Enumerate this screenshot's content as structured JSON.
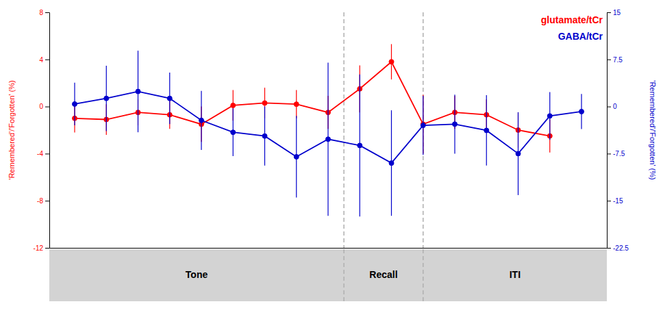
{
  "chart_data": {
    "type": "line",
    "ylabel": "'Remembered'/'Forgotten'  (%)",
    "y2label": "'Remembered'/'Forgotten'  (%)",
    "xlim": [
      0.2,
      17.8
    ],
    "ylim": [
      -12,
      8
    ],
    "yticks": [
      -12,
      -8,
      -4,
      0,
      4,
      8
    ],
    "y2lim": [
      -22.5,
      15
    ],
    "y2ticks": [
      -22.5,
      -15,
      -7.5,
      0,
      7.5,
      15
    ],
    "tick_labels": "y",
    "grid": false,
    "legend": "upper right",
    "vlines": [
      9.5,
      12.0
    ],
    "sections": [
      "Tone",
      "Recall",
      "ITI"
    ],
    "series": [
      {
        "name": "glutamate/tCr",
        "color": "#ff0000",
        "marker": "circle",
        "line_style": "solid",
        "x": [
          1,
          2,
          3,
          4,
          5,
          6,
          7,
          8,
          9,
          10,
          11,
          12,
          13,
          14,
          15,
          16
        ],
        "values": [
          -1.0,
          -1.1,
          -0.5,
          -0.7,
          -1.5,
          0.1,
          0.3,
          0.2,
          -0.5,
          1.5,
          3.8,
          -1.5,
          -0.5,
          -0.7,
          -2.0,
          -2.5
        ],
        "yerr": [
          1.2,
          1.3,
          1.1,
          1.2,
          1.5,
          1.3,
          1.3,
          1.2,
          1.4,
          2.0,
          1.5,
          2.5,
          1.4,
          1.3,
          1.5,
          1.4
        ]
      },
      {
        "name": "GABA/tCr",
        "color": "#0000cc",
        "marker": "circle",
        "line_style": "solid",
        "axis": "y2",
        "x": [
          1,
          2,
          3,
          4,
          5,
          6,
          7,
          8,
          9,
          10,
          11,
          12,
          13,
          14,
          15,
          16,
          17
        ],
        "values": [
          0.4,
          1.3,
          2.4,
          1.3,
          -2.2,
          -4.1,
          -4.7,
          -8.0,
          -5.2,
          -6.2,
          -9.0,
          -3.0,
          -2.8,
          -3.8,
          -7.5,
          -1.5,
          -0.8
        ],
        "yerr": [
          3.4,
          5.2,
          6.5,
          4.1,
          4.7,
          3.8,
          4.7,
          6.5,
          12.2,
          11.3,
          8.4,
          4.7,
          4.7,
          5.6,
          6.6,
          3.8,
          2.8
        ]
      }
    ]
  }
}
